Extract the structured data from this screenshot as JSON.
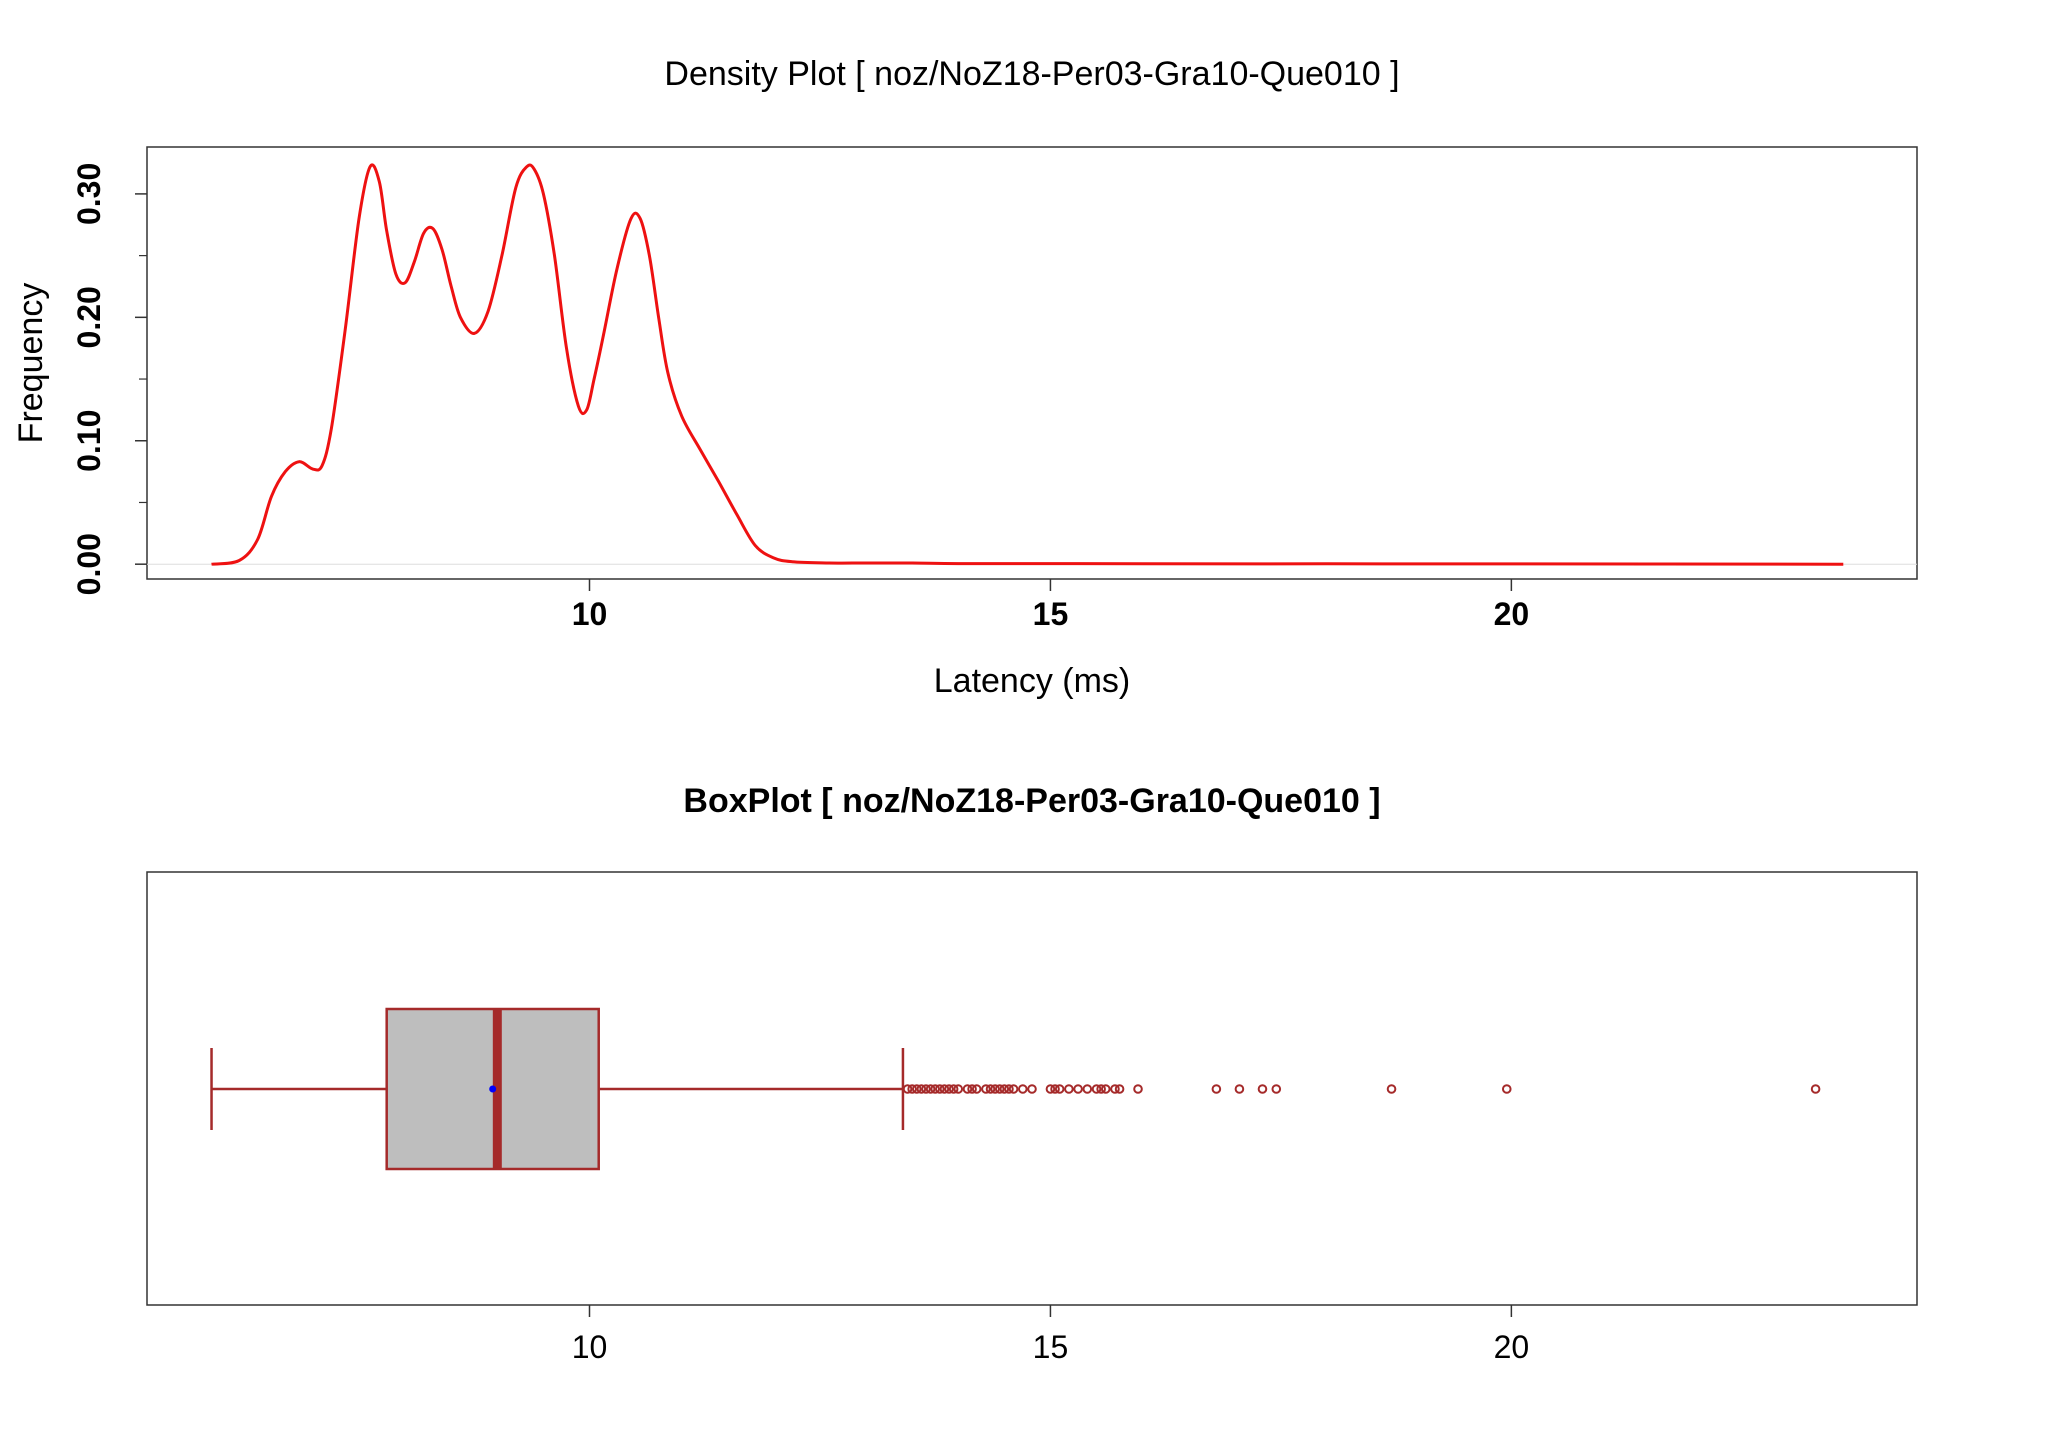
{
  "chart_data": [
    {
      "type": "line",
      "title": "Density Plot [ noz/NoZ18-Per03-Gra10-Que010 ]",
      "xlabel": "Latency (ms)",
      "ylabel": "Frequency",
      "xlim": [
        5.2,
        24.4
      ],
      "ylim": [
        -0.012,
        0.338
      ],
      "x_ticks": [
        10,
        15,
        20
      ],
      "y_ticks": [
        0.0,
        0.1,
        0.2,
        0.3
      ],
      "y_tick_labels": [
        "0.00",
        "0.10",
        "0.20",
        "0.30"
      ],
      "y_minor_ticks": [
        0.05,
        0.15,
        0.25
      ],
      "grid": false,
      "line_color": "#ee1111",
      "series": [
        {
          "x": [
            5.9,
            6.2,
            6.4,
            6.55,
            6.7,
            6.85,
            7.0,
            7.1,
            7.2,
            7.35,
            7.5,
            7.62,
            7.72,
            7.8,
            7.9,
            8.0,
            8.1,
            8.2,
            8.3,
            8.4,
            8.5,
            8.6,
            8.75,
            8.9,
            9.05,
            9.2,
            9.32,
            9.4,
            9.5,
            9.62,
            9.75,
            9.88,
            9.97,
            10.05,
            10.15,
            10.3,
            10.45,
            10.55,
            10.65,
            10.75,
            10.85,
            11.0,
            11.2,
            11.4,
            11.6,
            11.8,
            12.0,
            12.2,
            12.6,
            13.0,
            13.5,
            14.0,
            15.0,
            16.0,
            18.0,
            20.0,
            23.6
          ],
          "y": [
            0.0,
            0.003,
            0.02,
            0.055,
            0.075,
            0.083,
            0.077,
            0.08,
            0.11,
            0.19,
            0.28,
            0.322,
            0.31,
            0.27,
            0.235,
            0.228,
            0.245,
            0.268,
            0.272,
            0.255,
            0.225,
            0.2,
            0.187,
            0.205,
            0.25,
            0.305,
            0.322,
            0.32,
            0.3,
            0.25,
            0.175,
            0.128,
            0.125,
            0.15,
            0.185,
            0.24,
            0.28,
            0.28,
            0.25,
            0.2,
            0.155,
            0.12,
            0.093,
            0.067,
            0.04,
            0.015,
            0.005,
            0.002,
            0.001,
            0.001,
            0.001,
            0.0005,
            0.0005,
            0.0003,
            0.0003,
            0.0002,
            0.0
          ]
        }
      ]
    },
    {
      "type": "box",
      "title": "BoxPlot [ noz/NoZ18-Per03-Gra10-Que010 ]",
      "xlim": [
        5.2,
        24.4
      ],
      "x_ticks": [
        10,
        15,
        20
      ],
      "grid": false,
      "box_fill": "#bebebe",
      "box_color": "#a52a2a",
      "mean_color": "#0000ff",
      "whisker_low": 5.9,
      "q1": 7.8,
      "median": 9.0,
      "mean": 8.95,
      "q3": 10.1,
      "whisker_high": 13.4,
      "outliers": [
        13.45,
        13.5,
        13.55,
        13.6,
        13.65,
        13.7,
        13.75,
        13.8,
        13.85,
        13.9,
        13.95,
        14.0,
        14.1,
        14.15,
        14.2,
        14.3,
        14.35,
        14.4,
        14.45,
        14.5,
        14.55,
        14.6,
        14.7,
        14.8,
        15.0,
        15.05,
        15.1,
        15.2,
        15.3,
        15.4,
        15.5,
        15.55,
        15.6,
        15.7,
        15.75,
        15.95,
        16.8,
        17.05,
        17.3,
        17.45,
        18.7,
        19.95,
        23.3
      ]
    }
  ]
}
